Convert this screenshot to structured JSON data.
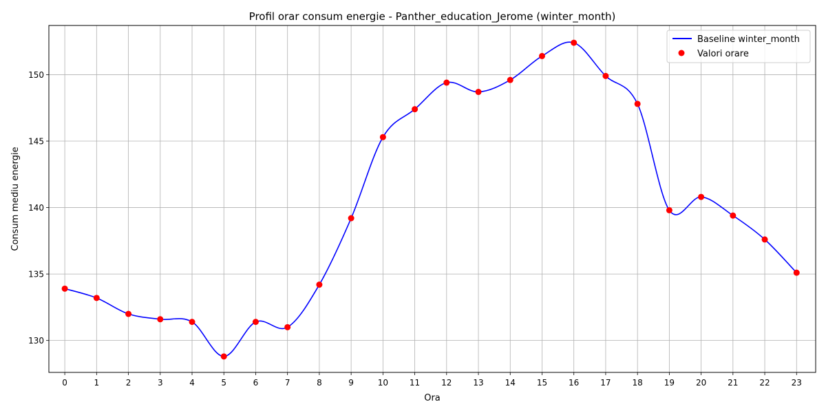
{
  "chart_data": {
    "type": "line",
    "title": "Profil orar consum energie - Panther_education_Jerome (winter_month)",
    "xlabel": "Ora",
    "ylabel": "Consum mediu energie",
    "x": [
      0,
      1,
      2,
      3,
      4,
      5,
      6,
      7,
      8,
      9,
      10,
      11,
      12,
      13,
      14,
      15,
      16,
      17,
      18,
      19,
      20,
      21,
      22,
      23
    ],
    "xlim": [
      -0.5,
      23.6
    ],
    "ylim": [
      127.6,
      153.7
    ],
    "y_ticks": [
      130,
      135,
      140,
      145,
      150
    ],
    "grid": true,
    "legend_position": "top-right",
    "series": [
      {
        "name": "Baseline winter_month",
        "kind": "line",
        "color": "#0000ff",
        "values": [
          133.9,
          133.2,
          132.0,
          131.6,
          131.4,
          128.8,
          131.4,
          131.0,
          134.2,
          139.2,
          145.3,
          147.4,
          149.4,
          148.7,
          149.6,
          151.4,
          152.4,
          149.9,
          147.8,
          139.8,
          140.8,
          139.4,
          137.6,
          135.1
        ]
      },
      {
        "name": "Valori orare",
        "kind": "scatter",
        "color": "#ff0000",
        "values": [
          133.9,
          133.2,
          132.0,
          131.6,
          131.4,
          128.8,
          131.4,
          131.0,
          134.2,
          139.2,
          145.3,
          147.4,
          149.4,
          148.7,
          149.6,
          151.4,
          152.4,
          149.9,
          147.8,
          139.8,
          140.8,
          139.4,
          137.6,
          135.1
        ]
      }
    ]
  }
}
